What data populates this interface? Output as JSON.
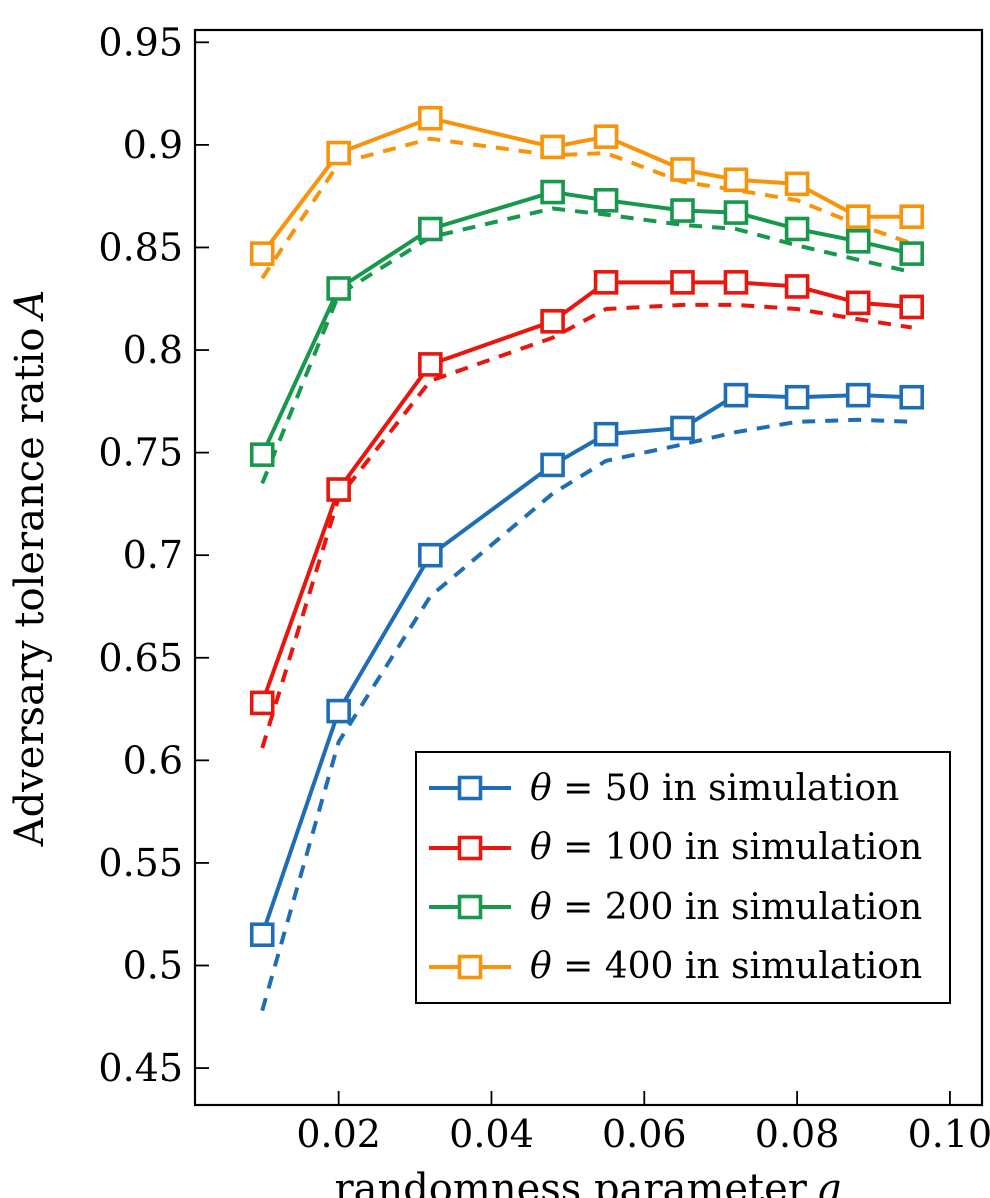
{
  "chart_data": {
    "type": "line",
    "title": "",
    "xlabel": "randomness parameter q",
    "xlabel_text": "randomness parameter",
    "xlabel_symbol": "q",
    "ylabel": "Adversary tolerance ratio A",
    "ylabel_text": "Adversary tolerance ratio",
    "ylabel_symbol": "A",
    "grid": false,
    "xlim": [
      0.0012,
      0.1042
    ],
    "ylim": [
      0.432,
      0.956
    ],
    "x_ticks": {
      "values": [
        0.02,
        0.04,
        0.06,
        0.08,
        0.1
      ],
      "labels": [
        "0.02",
        "0.04",
        "0.06",
        "0.08",
        "0.10"
      ]
    },
    "y_ticks": {
      "values": [
        0.95,
        0.9,
        0.85,
        0.8,
        0.75,
        0.7,
        0.65,
        0.6,
        0.55,
        0.5,
        0.45
      ],
      "labels": [
        "0.95",
        "0.9",
        "0.85",
        "0.8",
        "0.75",
        "0.7",
        "0.65",
        "0.6",
        "0.55",
        "0.5",
        "0.45"
      ]
    },
    "x": [
      0.01,
      0.02,
      0.032,
      0.048,
      0.055,
      0.065,
      0.072,
      0.08,
      0.088,
      0.095
    ],
    "series": [
      {
        "label": "θ = 50 in simulation",
        "theta": 50,
        "color": "#1f6eb5",
        "style": "solid",
        "marker": "square",
        "values": [
          0.515,
          0.624,
          0.7,
          0.744,
          0.759,
          0.762,
          0.778,
          0.777,
          0.778,
          0.777
        ]
      },
      {
        "label": "θ = 100 in simulation",
        "theta": 100,
        "color": "#e8160d",
        "style": "solid",
        "marker": "square",
        "values": [
          0.628,
          0.732,
          0.793,
          0.814,
          0.833,
          0.833,
          0.833,
          0.831,
          0.823,
          0.821
        ]
      },
      {
        "label": "θ = 200 in simulation",
        "theta": 200,
        "color": "#17984d",
        "style": "solid",
        "marker": "square",
        "values": [
          0.749,
          0.83,
          0.859,
          0.877,
          0.873,
          0.868,
          0.867,
          0.859,
          0.853,
          0.847
        ]
      },
      {
        "label": "θ = 400 in simulation",
        "theta": 400,
        "color": "#f8940b",
        "style": "solid",
        "marker": "square",
        "values": [
          0.847,
          0.896,
          0.913,
          0.899,
          0.904,
          0.888,
          0.883,
          0.881,
          0.865,
          0.865
        ]
      },
      {
        "label": null,
        "theta": 50,
        "color": "#1f6eb5",
        "style": "dashed",
        "marker": "none",
        "values": [
          0.478,
          0.609,
          0.68,
          0.73,
          0.746,
          0.754,
          0.76,
          0.765,
          0.766,
          0.765
        ]
      },
      {
        "label": null,
        "theta": 100,
        "color": "#e8160d",
        "style": "dashed",
        "marker": "none",
        "values": [
          0.606,
          0.728,
          0.785,
          0.806,
          0.82,
          0.822,
          0.822,
          0.82,
          0.815,
          0.811
        ]
      },
      {
        "label": null,
        "theta": 200,
        "color": "#17984d",
        "style": "dashed",
        "marker": "none",
        "values": [
          0.735,
          0.827,
          0.855,
          0.869,
          0.866,
          0.861,
          0.859,
          0.851,
          0.844,
          0.838
        ]
      },
      {
        "label": null,
        "theta": 400,
        "color": "#f8940b",
        "style": "dashed",
        "marker": "none",
        "values": [
          0.835,
          0.891,
          0.903,
          0.895,
          0.896,
          0.882,
          0.878,
          0.873,
          0.861,
          0.852
        ]
      }
    ],
    "legend": {
      "location": "lower-right-inside",
      "border": true,
      "entries_are_series_indices": [
        0,
        1,
        2,
        3
      ]
    }
  }
}
